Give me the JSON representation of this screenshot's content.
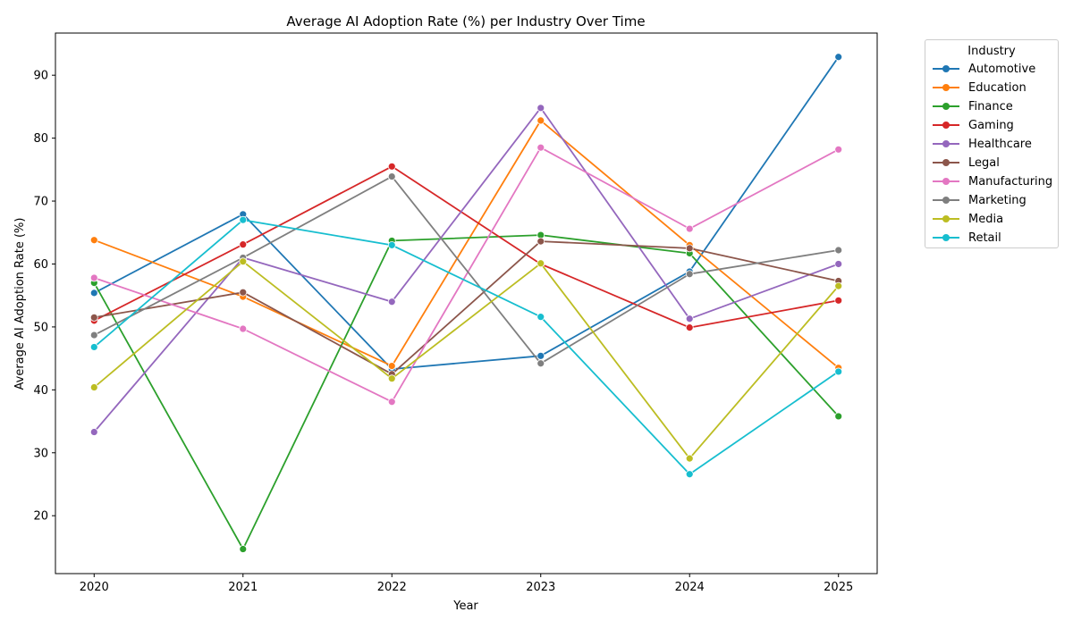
{
  "chart_data": {
    "type": "line",
    "title": "Average AI Adoption Rate (%) per Industry Over Time",
    "xlabel": "Year",
    "ylabel": "Average AI Adoption Rate (%)",
    "x": [
      2020,
      2021,
      2022,
      2023,
      2024,
      2025
    ],
    "x_tick_labels": [
      "2020",
      "2021",
      "2022",
      "2023",
      "2024",
      "2025"
    ],
    "y_ticks": [
      20,
      30,
      40,
      50,
      60,
      70,
      80,
      90
    ],
    "y_tick_labels": [
      "20",
      "30",
      "40",
      "50",
      "60",
      "70",
      "80",
      "90"
    ],
    "xlim": [
      2019.74,
      2025.26
    ],
    "ylim": [
      10.8,
      96.7
    ],
    "grid": false,
    "legend": {
      "title": "Industry",
      "placement": "outside-top-right"
    },
    "series": [
      {
        "name": "Automotive",
        "color": "#1f77b4",
        "values": [
          55.4,
          67.9,
          43.3,
          45.4,
          58.8,
          92.9
        ]
      },
      {
        "name": "Education",
        "color": "#ff7f0e",
        "values": [
          63.8,
          54.8,
          43.8,
          82.8,
          63.0,
          43.5
        ]
      },
      {
        "name": "Finance",
        "color": "#2ca02c",
        "values": [
          57.0,
          14.7,
          63.7,
          64.6,
          61.7,
          35.8
        ]
      },
      {
        "name": "Gaming",
        "color": "#d62728",
        "values": [
          51.0,
          63.1,
          75.5,
          60.0,
          49.9,
          54.2
        ]
      },
      {
        "name": "Healthcare",
        "color": "#9467bd",
        "values": [
          33.3,
          61.0,
          54.0,
          84.8,
          51.3,
          60.0
        ]
      },
      {
        "name": "Legal",
        "color": "#8c564b",
        "values": [
          51.5,
          55.5,
          42.5,
          63.6,
          62.5,
          57.3
        ]
      },
      {
        "name": "Manufacturing",
        "color": "#e377c2",
        "values": [
          57.8,
          49.7,
          38.1,
          78.5,
          65.6,
          78.2
        ]
      },
      {
        "name": "Marketing",
        "color": "#7f7f7f",
        "values": [
          48.7,
          61.0,
          73.9,
          44.2,
          58.4,
          62.2
        ]
      },
      {
        "name": "Media",
        "color": "#bcbd22",
        "values": [
          40.4,
          60.4,
          41.8,
          60.1,
          29.1,
          56.5
        ]
      },
      {
        "name": "Retail",
        "color": "#17becf",
        "values": [
          46.8,
          67.0,
          63.0,
          51.6,
          26.6,
          42.9
        ]
      }
    ]
  }
}
